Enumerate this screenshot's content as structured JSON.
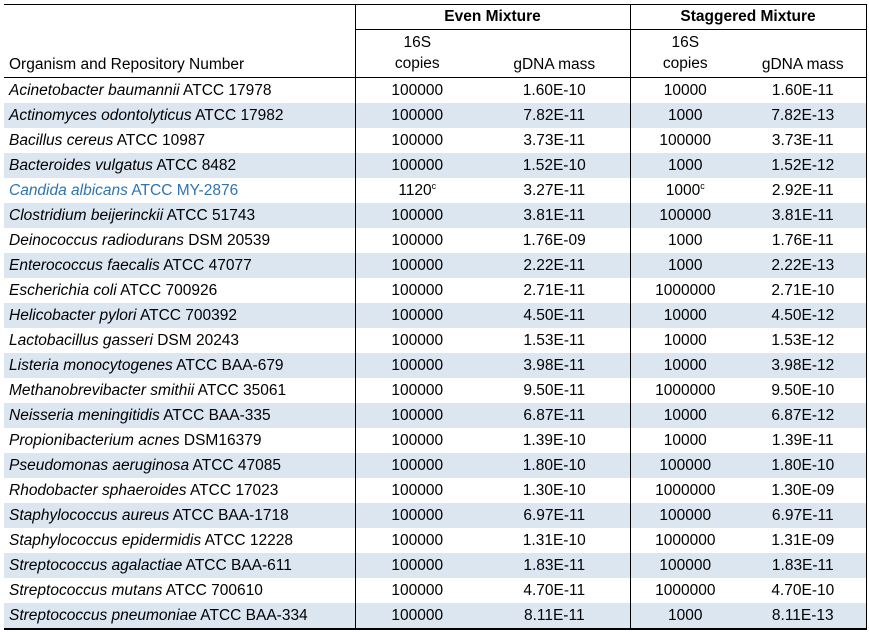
{
  "table": {
    "band_color": "#dce6f1",
    "highlight_text_color": "#2e74b5",
    "border_color": "#000000",
    "groups": {
      "even": "Even Mixture",
      "staggered": "Staggered Mixture"
    },
    "headers": {
      "organism": "Organism and Repository Number",
      "copies_top": "16S",
      "copies_bottom": "copies",
      "gdna": "gDNA mass"
    },
    "rows": [
      {
        "species": "Acinetobacter baumannii",
        "repo": "ATCC 17978",
        "even_copies": "100000",
        "even_gdna": "1.60E-10",
        "stag_copies": "10000",
        "stag_gdna": "1.60E-11",
        "highlight": false
      },
      {
        "species": "Actinomyces odontolyticus",
        "repo": "ATCC 17982",
        "even_copies": "100000",
        "even_gdna": "7.82E-11",
        "stag_copies": "1000",
        "stag_gdna": "7.82E-13",
        "highlight": false
      },
      {
        "species": "Bacillus cereus",
        "repo": "ATCC 10987",
        "even_copies": "100000",
        "even_gdna": "3.73E-11",
        "stag_copies": "100000",
        "stag_gdna": "3.73E-11",
        "highlight": false
      },
      {
        "species": "Bacteroides vulgatus",
        "repo": "ATCC 8482",
        "even_copies": "100000",
        "even_gdna": "1.52E-10",
        "stag_copies": "1000",
        "stag_gdna": "1.52E-12",
        "highlight": false
      },
      {
        "species": "Candida albicans",
        "repo": "ATCC MY-2876",
        "even_copies": "1120",
        "even_copies_sup": "c",
        "even_gdna": "3.27E-11",
        "stag_copies": "1000",
        "stag_copies_sup": "c",
        "stag_gdna": "2.92E-11",
        "highlight": true
      },
      {
        "species": "Clostridium beijerinckii",
        "repo": "ATCC 51743",
        "even_copies": "100000",
        "even_gdna": "3.81E-11",
        "stag_copies": "100000",
        "stag_gdna": "3.81E-11",
        "highlight": false
      },
      {
        "species": "Deinococcus radiodurans",
        "repo": "DSM 20539",
        "even_copies": "100000",
        "even_gdna": "1.76E-09",
        "stag_copies": "1000",
        "stag_gdna": "1.76E-11",
        "highlight": false
      },
      {
        "species": "Enterococcus faecalis",
        "repo": "ATCC 47077",
        "even_copies": "100000",
        "even_gdna": "2.22E-11",
        "stag_copies": "1000",
        "stag_gdna": "2.22E-13",
        "highlight": false
      },
      {
        "species": "Escherichia coli",
        "repo": "ATCC 700926",
        "even_copies": "100000",
        "even_gdna": "2.71E-11",
        "stag_copies": "1000000",
        "stag_gdna": "2.71E-10",
        "highlight": false
      },
      {
        "species": "Helicobacter pylori",
        "repo": "ATCC 700392",
        "even_copies": "100000",
        "even_gdna": "4.50E-11",
        "stag_copies": "10000",
        "stag_gdna": "4.50E-12",
        "highlight": false
      },
      {
        "species": "Lactobacillus gasseri",
        "repo": "DSM 20243",
        "even_copies": "100000",
        "even_gdna": "1.53E-11",
        "stag_copies": "10000",
        "stag_gdna": "1.53E-12",
        "highlight": false
      },
      {
        "species": "Listeria monocytogenes",
        "repo": "ATCC BAA-679",
        "even_copies": "100000",
        "even_gdna": "3.98E-11",
        "stag_copies": "10000",
        "stag_gdna": "3.98E-12",
        "highlight": false
      },
      {
        "species": "Methanobrevibacter smithii",
        "repo": "ATCC 35061",
        "even_copies": "100000",
        "even_gdna": "9.50E-11",
        "stag_copies": "1000000",
        "stag_gdna": "9.50E-10",
        "highlight": false
      },
      {
        "species": "Neisseria meningitidis",
        "repo": "ATCC BAA-335",
        "even_copies": "100000",
        "even_gdna": "6.87E-11",
        "stag_copies": "10000",
        "stag_gdna": "6.87E-12",
        "highlight": false
      },
      {
        "species": "Propionibacterium acnes",
        "repo": "DSM16379",
        "even_copies": "100000",
        "even_gdna": "1.39E-10",
        "stag_copies": "10000",
        "stag_gdna": "1.39E-11",
        "highlight": false
      },
      {
        "species": "Pseudomonas aeruginosa",
        "repo": "ATCC 47085",
        "even_copies": "100000",
        "even_gdna": "1.80E-10",
        "stag_copies": "100000",
        "stag_gdna": "1.80E-10",
        "highlight": false
      },
      {
        "species": "Rhodobacter sphaeroides",
        "repo": "ATCC 17023",
        "even_copies": "100000",
        "even_gdna": "1.30E-10",
        "stag_copies": "1000000",
        "stag_gdna": "1.30E-09",
        "highlight": false
      },
      {
        "species": "Staphylococcus aureus",
        "repo": "ATCC BAA-1718",
        "even_copies": "100000",
        "even_gdna": "6.97E-11",
        "stag_copies": "100000",
        "stag_gdna": "6.97E-11",
        "highlight": false
      },
      {
        "species": "Staphylococcus epidermidis",
        "repo": "ATCC 12228",
        "even_copies": "100000",
        "even_gdna": "1.31E-10",
        "stag_copies": "1000000",
        "stag_gdna": "1.31E-09",
        "highlight": false
      },
      {
        "species": "Streptococcus agalactiae",
        "repo": "ATCC BAA-611",
        "even_copies": "100000",
        "even_gdna": "1.83E-11",
        "stag_copies": "100000",
        "stag_gdna": "1.83E-11",
        "highlight": false
      },
      {
        "species": "Streptococcus mutans",
        "repo": "ATCC 700610",
        "even_copies": "100000",
        "even_gdna": "4.70E-11",
        "stag_copies": "1000000",
        "stag_gdna": "4.70E-10",
        "highlight": false
      },
      {
        "species": "Streptococcus pneumoniae",
        "repo": "ATCC BAA-334",
        "even_copies": "100000",
        "even_gdna": "8.11E-11",
        "stag_copies": "1000",
        "stag_gdna": "8.11E-13",
        "highlight": false
      }
    ]
  }
}
